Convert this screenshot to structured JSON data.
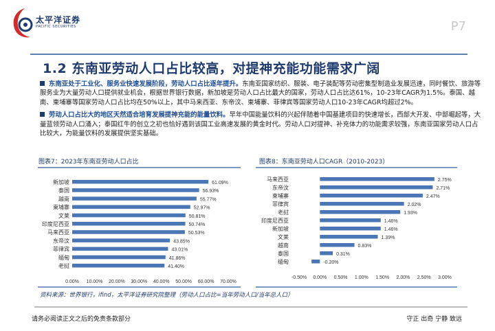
{
  "header": {
    "brand_cn": "太平洋证券",
    "brand_en": "PACIFIC SECURITIES",
    "page": "P7"
  },
  "title": "1.2 东南亚劳动人口占比较高，对提神充能功能需求广阔",
  "paragraphs": [
    {
      "bold": "东南亚处于工业化、服务业快速发展阶段，劳动人口占比逐年提升。",
      "text": "东南亚国家纺织、服装、电子装配等劳动密集型制造业发展迅速，同时餐饮、旅游等服务业为大量劳动人口提供就业机会，根据世界银行数据，新加坡是劳动人口占比最大的国家，劳动人口占比达61%，10-23年CAGR为1.5%。泰国、越南、柬埔寨等国家劳动人口占比均在50%以上，其中马来西亚、东帝汶、柬埔寨、菲律宾等国家劳动人口10-23年CAGR均超过2%。"
    },
    {
      "bold": "劳动人口占比大的地区天然适合培育发展提神充能的能量饮料。",
      "text": "早年中国能量饮料的兴起伴随着中国基建项目的快速增长，西部大开发、中部崛起等，大量蓝领劳动人口涌入；泰国红牛的创立之初也恰好遇到该国工业高速发展的黄金时代。劳动人口对提神、补充体力的功能需求较强，东南亚国家劳动人口占比较大，为能量饮料的发展提供坚实基础。"
    }
  ],
  "chart_data": [
    {
      "type": "bar",
      "title": "图表7：2023年东南亚劳动人口占比",
      "orientation": "horizontal",
      "categories": [
        "新加坡",
        "泰国",
        "越南",
        "柬埔寨",
        "文莱",
        "印度尼西亚",
        "马来西亚",
        "东帝汶",
        "菲律宾",
        "缅甸",
        "老挝"
      ],
      "values": [
        61.09,
        56.93,
        55.77,
        52.97,
        50.81,
        50.74,
        50.53,
        43.85,
        43.01,
        41.86,
        41.4
      ],
      "labels": [
        "61.09%",
        "56.93%",
        "55.77%",
        "52.97%",
        "50.81%",
        "50.74%",
        "50.53%",
        "43.85%",
        "43.01%",
        "41.86%",
        "41.40%"
      ],
      "xlim": [
        0,
        70
      ],
      "ticks": [
        "0.00%",
        "10.00%",
        "20.00%",
        "30.00%",
        "40.00%",
        "50.00%",
        "60.00%",
        "70.00%"
      ],
      "color": "#4a76b5"
    },
    {
      "type": "bar",
      "title": "图表8：东南亚劳动人口CAGR（2010-2023）",
      "orientation": "horizontal",
      "categories": [
        "马来西亚",
        "东帝汶",
        "柬埔寨",
        "菲律宾",
        "老挝",
        "印度尼西亚",
        "新加坡",
        "文莱",
        "越南",
        "泰国",
        "缅甸"
      ],
      "values": [
        2.75,
        2.71,
        2.47,
        2.02,
        1.93,
        1.46,
        1.46,
        1.39,
        0.83,
        0.31,
        -0.2
      ],
      "labels": [
        "2.75%",
        "2.71%",
        "2.47%",
        "2.02%",
        "1.93%",
        "1.46%",
        "1.46%",
        "1.39%",
        "0.83%",
        "0.31%",
        "-0.20%"
      ],
      "xlim": [
        -0.5,
        3.0
      ],
      "ticks": [
        "-0.50%",
        "0.00%",
        "0.50%",
        "1.00%",
        "1.50%",
        "2.00%",
        "2.50%",
        "3.00%"
      ],
      "color": "#4a76b5"
    }
  ],
  "source": "资料来源：世界银行，ifind，太平洋证券研究院整理（劳动人口占比=当年劳动人口/当年总人口）",
  "footer": {
    "left": "请务必阅读正文之后的免责条款部分",
    "right": "守正 出奇 宁静 致远"
  }
}
